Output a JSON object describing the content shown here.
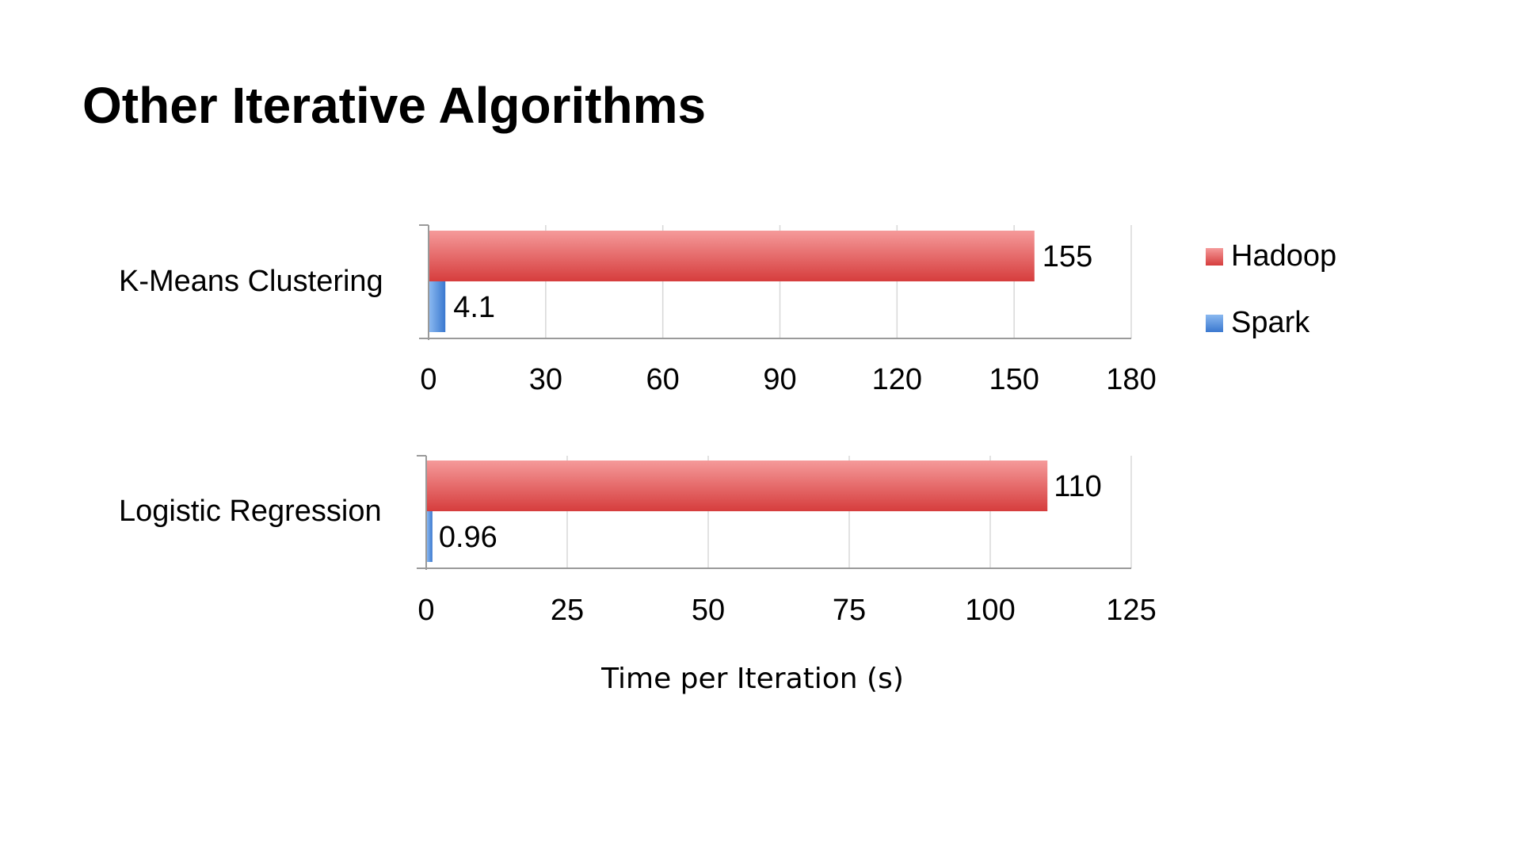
{
  "slide": {
    "title": "Other Iterative Algorithms",
    "xlabel": "Time per Iteration (s)"
  },
  "legend": [
    {
      "name": "Hadoop",
      "color": "#d94545"
    },
    {
      "name": "Spark",
      "color": "#4a86d8"
    }
  ],
  "chart_data": [
    {
      "type": "bar",
      "orientation": "horizontal",
      "categories": [
        "K-Means Clustering"
      ],
      "series": [
        {
          "name": "Hadoop",
          "values": [
            155
          ]
        },
        {
          "name": "Spark",
          "values": [
            4.1
          ]
        }
      ],
      "data_labels": [
        "155",
        "4.1"
      ],
      "xlim": [
        0,
        180
      ],
      "xticks": [
        "0",
        "30",
        "60",
        "90",
        "120",
        "150",
        "180"
      ],
      "grid": true
    },
    {
      "type": "bar",
      "orientation": "horizontal",
      "categories": [
        "Logistic Regression"
      ],
      "series": [
        {
          "name": "Hadoop",
          "values": [
            110
          ]
        },
        {
          "name": "Spark",
          "values": [
            0.96
          ]
        }
      ],
      "data_labels": [
        "110",
        "0.96"
      ],
      "xlim": [
        0,
        125
      ],
      "xticks": [
        "0",
        "25",
        "50",
        "75",
        "100",
        "125"
      ],
      "xlabel": "Time per Iteration (s)",
      "grid": true
    }
  ]
}
